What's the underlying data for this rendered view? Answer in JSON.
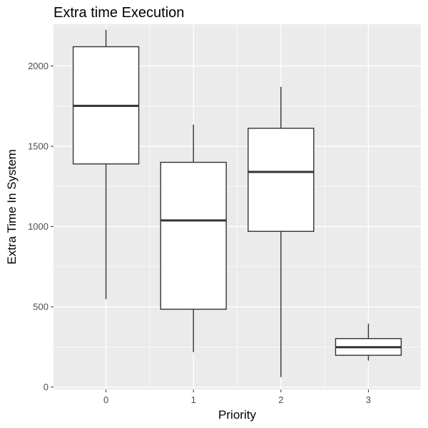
{
  "chart_data": {
    "type": "boxplot",
    "title": "Extra time Execution",
    "xlabel": "Priority",
    "ylabel": "Extra Time In System",
    "ylim": [
      -15,
      2260
    ],
    "y_ticks": [
      0,
      500,
      1000,
      1500,
      2000
    ],
    "y_tick_labels": [
      "0",
      "500",
      "1000",
      "1500",
      "2000"
    ],
    "categories": [
      "0",
      "1",
      "2",
      "3"
    ],
    "boxes": [
      {
        "category": "0",
        "whisker_low": 548,
        "q1": 1390,
        "median": 1752,
        "q3": 2120,
        "whisker_high": 2225
      },
      {
        "category": "1",
        "whisker_low": 218,
        "q1": 485,
        "median": 1038,
        "q3": 1400,
        "whisker_high": 1635
      },
      {
        "category": "2",
        "whisker_low": 62,
        "q1": 970,
        "median": 1340,
        "q3": 1612,
        "whisker_high": 1870
      },
      {
        "category": "3",
        "whisker_low": 165,
        "q1": 198,
        "median": 248,
        "q3": 302,
        "whisker_high": 395
      }
    ],
    "grid": true,
    "legend": "none",
    "colors": {
      "panel": "#ebebeb",
      "grid_major": "#ffffff",
      "box_fill": "#ffffff",
      "box_line": "#333333",
      "tick_label": "#4d4d4d",
      "text": "#000000"
    }
  }
}
